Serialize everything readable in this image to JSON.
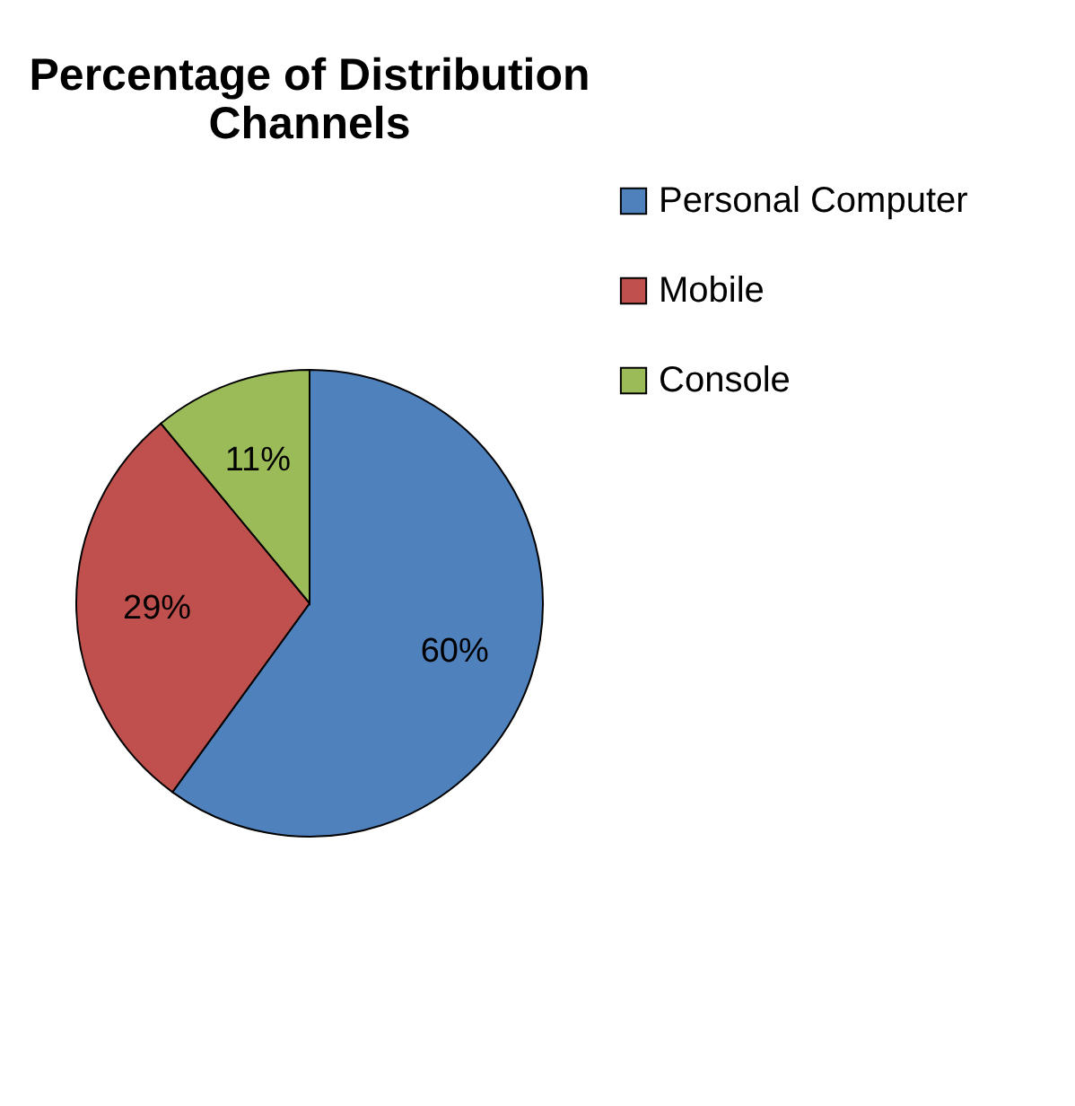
{
  "chart_data": {
    "type": "pie",
    "title": "Percentage of Distribution Channels",
    "categories": [
      "Personal Computer",
      "Mobile",
      "Console"
    ],
    "values": [
      60,
      29,
      11
    ],
    "colors": [
      "#4f81bd",
      "#c0504d",
      "#9bbb59"
    ],
    "value_labels": [
      "60%",
      "29%",
      "11%"
    ],
    "legend": "right"
  }
}
